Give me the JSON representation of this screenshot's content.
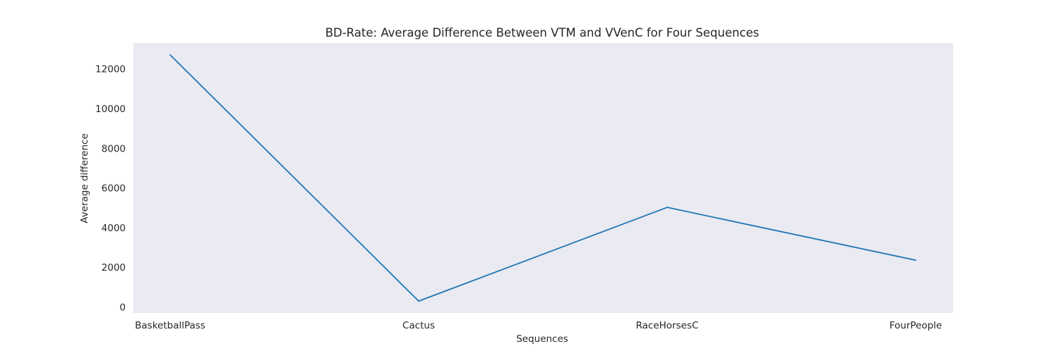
{
  "chart_data": {
    "type": "line",
    "title": "BD-Rate: Average Difference Between VTM and VVenC for Four Sequences",
    "xlabel": "Sequences",
    "ylabel": "Average difference",
    "categories": [
      "BasketballPass",
      "Cactus",
      "RaceHorsesC",
      "FourPeople"
    ],
    "series": [
      {
        "values": [
          12700,
          300,
          5020,
          2360
        ]
      }
    ],
    "ylim": [
      -300,
      13300
    ],
    "yticks": [
      0,
      2000,
      4000,
      6000,
      8000,
      10000,
      12000
    ],
    "ytick_labels": [
      "0",
      "2000",
      "4000",
      "6000",
      "8000",
      "10000",
      "12000"
    ],
    "grid": false,
    "legend": "none",
    "colors": {
      "background": "#eaeaf2",
      "line": "#1f77b4"
    }
  }
}
